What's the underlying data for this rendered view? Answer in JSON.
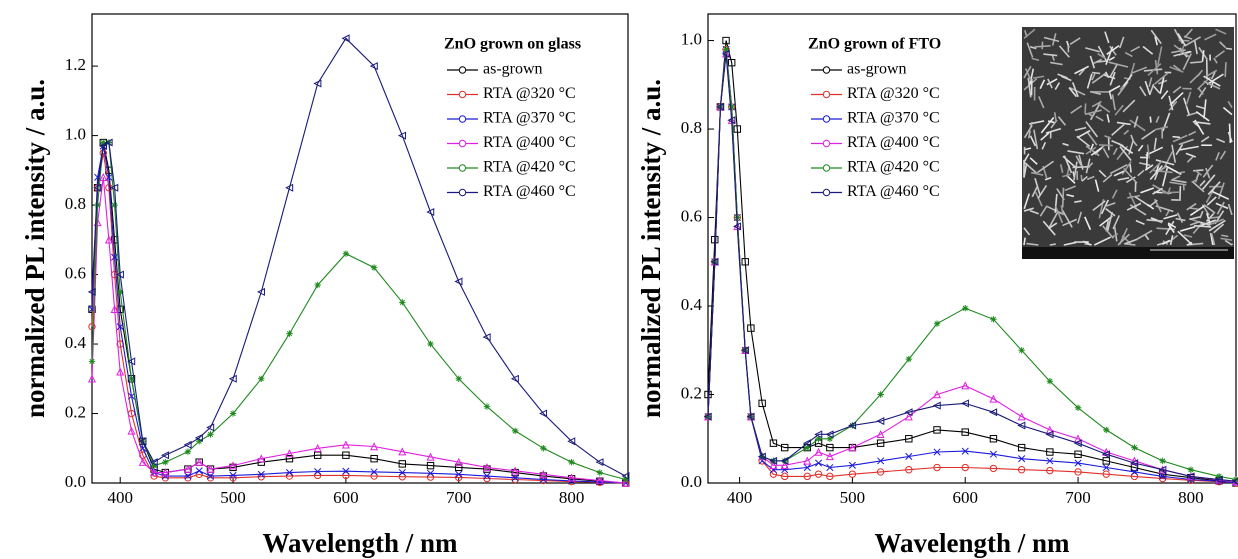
{
  "chart_data": [
    {
      "type": "line",
      "legend_title": "ZnO grown on glass",
      "x_label": "Wavelength / nm",
      "y_label": "normalized PL intensity / a.u.",
      "xlim": [
        375,
        850
      ],
      "ylim": [
        0,
        1.35
      ],
      "xticks": [
        400,
        500,
        600,
        700,
        800
      ],
      "yticks": [
        {
          "value": 0,
          "label": "0.0"
        },
        0.2,
        0.4,
        0.6,
        0.8,
        {
          "value": 1,
          "label": "1.0"
        },
        1.2
      ],
      "legend": "upper right",
      "x": [
        375,
        380,
        385,
        390,
        395,
        400,
        410,
        420,
        430,
        440,
        460,
        470,
        480,
        500,
        525,
        550,
        575,
        600,
        625,
        650,
        675,
        700,
        725,
        750,
        775,
        800,
        825,
        848
      ],
      "series": [
        {
          "name": "as-grown",
          "color": "#000000",
          "marker": "square",
          "values": [
            0.5,
            0.85,
            0.98,
            0.9,
            0.7,
            0.5,
            0.3,
            0.12,
            0.04,
            0.03,
            0.04,
            0.06,
            0.04,
            0.045,
            0.06,
            0.07,
            0.08,
            0.08,
            0.07,
            0.055,
            0.05,
            0.045,
            0.04,
            0.03,
            0.02,
            0.012,
            0.005,
            0.0
          ]
        },
        {
          "name": "RTA @320 °C",
          "color": "#e0302a",
          "marker": "circle",
          "values": [
            0.45,
            0.85,
            0.95,
            0.85,
            0.6,
            0.4,
            0.2,
            0.08,
            0.02,
            0.015,
            0.015,
            0.025,
            0.015,
            0.015,
            0.018,
            0.02,
            0.022,
            0.022,
            0.02,
            0.018,
            0.017,
            0.016,
            0.013,
            0.01,
            0.007,
            0.004,
            0.002,
            0.0
          ]
        },
        {
          "name": "RTA @370 °C",
          "color": "#1a1adc",
          "marker": "x",
          "values": [
            0.5,
            0.88,
            0.97,
            0.88,
            0.65,
            0.45,
            0.25,
            0.1,
            0.03,
            0.02,
            0.02,
            0.035,
            0.02,
            0.022,
            0.025,
            0.03,
            0.033,
            0.034,
            0.032,
            0.03,
            0.028,
            0.025,
            0.02,
            0.015,
            0.01,
            0.006,
            0.003,
            0.0
          ]
        },
        {
          "name": "RTA @400 °C",
          "color": "#e020e0",
          "marker": "triangle-up",
          "values": [
            0.3,
            0.75,
            0.88,
            0.7,
            0.5,
            0.32,
            0.15,
            0.06,
            0.03,
            0.03,
            0.04,
            0.06,
            0.04,
            0.05,
            0.07,
            0.085,
            0.1,
            0.11,
            0.105,
            0.09,
            0.075,
            0.06,
            0.045,
            0.035,
            0.025,
            0.015,
            0.007,
            0.0
          ]
        },
        {
          "name": "RTA @420 °C",
          "color": "#1e8a1e",
          "marker": "star",
          "values": [
            0.35,
            0.8,
            0.98,
            0.98,
            0.8,
            0.55,
            0.3,
            0.12,
            0.05,
            0.06,
            0.09,
            0.12,
            0.14,
            0.2,
            0.3,
            0.43,
            0.57,
            0.66,
            0.62,
            0.52,
            0.4,
            0.3,
            0.22,
            0.15,
            0.1,
            0.06,
            0.03,
            0.01
          ]
        },
        {
          "name": "RTA @460 °C",
          "color": "#1a1a7a",
          "marker": "triangle-left",
          "values": [
            0.55,
            0.85,
            0.97,
            0.98,
            0.85,
            0.6,
            0.35,
            0.12,
            0.06,
            0.08,
            0.11,
            0.13,
            0.16,
            0.3,
            0.55,
            0.85,
            1.15,
            1.28,
            1.2,
            1.0,
            0.78,
            0.58,
            0.42,
            0.3,
            0.2,
            0.12,
            0.06,
            0.02
          ]
        }
      ]
    },
    {
      "type": "line",
      "legend_title": "ZnO grown of FTO",
      "x_label": "Wavelength / nm",
      "y_label": "normalized PL intensity / a.u.",
      "xlim": [
        372,
        840
      ],
      "ylim": [
        0,
        1.06
      ],
      "xticks": [
        400,
        500,
        600,
        700,
        800
      ],
      "yticks": [
        {
          "value": 0,
          "label": "0.0"
        },
        0.2,
        0.4,
        0.6,
        0.8,
        {
          "value": 1,
          "label": "1.0"
        }
      ],
      "legend": "upper left",
      "x": [
        372,
        378,
        383,
        388,
        393,
        398,
        405,
        410,
        420,
        430,
        440,
        460,
        470,
        480,
        500,
        525,
        550,
        575,
        600,
        625,
        650,
        675,
        700,
        725,
        750,
        775,
        800,
        825,
        840
      ],
      "series": [
        {
          "name": "as-grown",
          "color": "#000000",
          "marker": "square",
          "values": [
            0.2,
            0.55,
            0.85,
            1.0,
            0.95,
            0.8,
            0.5,
            0.35,
            0.18,
            0.09,
            0.08,
            0.08,
            0.09,
            0.08,
            0.08,
            0.09,
            0.1,
            0.12,
            0.115,
            0.1,
            0.08,
            0.07,
            0.065,
            0.05,
            0.035,
            0.02,
            0.012,
            0.005,
            0.0
          ]
        },
        {
          "name": "RTA @320 °C",
          "color": "#e0302a",
          "marker": "circle",
          "values": [
            0.15,
            0.5,
            0.85,
            0.98,
            0.85,
            0.6,
            0.3,
            0.15,
            0.05,
            0.02,
            0.015,
            0.015,
            0.02,
            0.015,
            0.02,
            0.025,
            0.03,
            0.035,
            0.035,
            0.033,
            0.03,
            0.028,
            0.025,
            0.02,
            0.015,
            0.01,
            0.006,
            0.003,
            0.0
          ]
        },
        {
          "name": "RTA @370 °C",
          "color": "#1a1adc",
          "marker": "x",
          "values": [
            0.15,
            0.5,
            0.85,
            0.98,
            0.85,
            0.6,
            0.3,
            0.15,
            0.05,
            0.03,
            0.03,
            0.035,
            0.045,
            0.035,
            0.04,
            0.05,
            0.06,
            0.07,
            0.072,
            0.065,
            0.055,
            0.05,
            0.045,
            0.035,
            0.025,
            0.015,
            0.008,
            0.004,
            0.0
          ]
        },
        {
          "name": "RTA @400 °C",
          "color": "#e020e0",
          "marker": "triangle-up",
          "values": [
            0.15,
            0.5,
            0.85,
            0.97,
            0.82,
            0.58,
            0.3,
            0.15,
            0.06,
            0.04,
            0.04,
            0.05,
            0.07,
            0.06,
            0.08,
            0.11,
            0.15,
            0.2,
            0.22,
            0.19,
            0.15,
            0.12,
            0.1,
            0.07,
            0.05,
            0.03,
            0.015,
            0.007,
            0.003
          ]
        },
        {
          "name": "RTA @420 °C",
          "color": "#1e8a1e",
          "marker": "star",
          "values": [
            0.15,
            0.5,
            0.85,
            0.98,
            0.85,
            0.6,
            0.3,
            0.15,
            0.06,
            0.05,
            0.05,
            0.08,
            0.1,
            0.1,
            0.13,
            0.2,
            0.28,
            0.36,
            0.395,
            0.37,
            0.3,
            0.23,
            0.17,
            0.12,
            0.08,
            0.05,
            0.03,
            0.015,
            0.008
          ]
        },
        {
          "name": "RTA @460 °C",
          "color": "#1a1a7a",
          "marker": "triangle-left",
          "values": [
            0.15,
            0.5,
            0.85,
            0.97,
            0.82,
            0.58,
            0.3,
            0.15,
            0.06,
            0.05,
            0.05,
            0.09,
            0.11,
            0.11,
            0.13,
            0.14,
            0.16,
            0.175,
            0.18,
            0.16,
            0.13,
            0.11,
            0.09,
            0.065,
            0.045,
            0.03,
            0.015,
            0.008,
            0.004
          ]
        }
      ]
    }
  ]
}
